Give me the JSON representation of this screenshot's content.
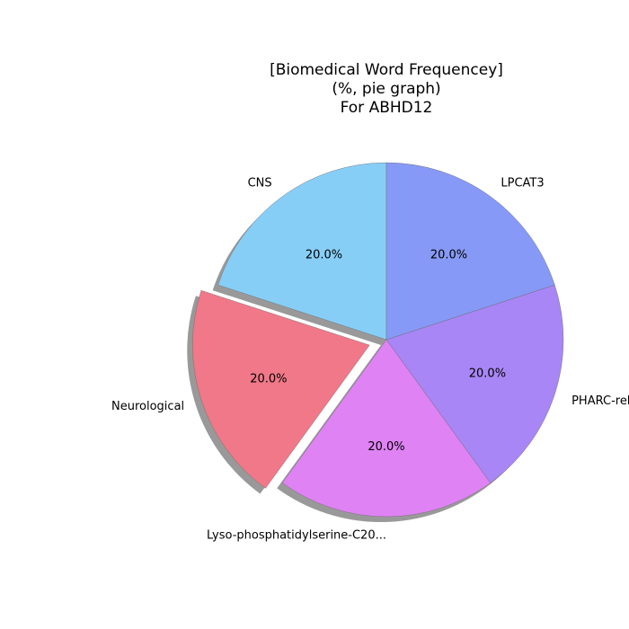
{
  "chart_data": {
    "type": "pie",
    "title_lines": [
      "[Biomedical Word Frequencey]",
      "(%, pie graph)",
      "For ABHD12"
    ],
    "slices": [
      {
        "label": "CNS",
        "value": 20.0,
        "pct_label": "20.0%",
        "color": "#87cef7",
        "explode": false
      },
      {
        "label": "Neurological",
        "value": 20.0,
        "pct_label": "20.0%",
        "color": "#f07888",
        "explode": true
      },
      {
        "label": "Lyso-phosphatidylserine-C20...",
        "value": 20.0,
        "pct_label": "20.0%",
        "color": "#df82f4",
        "explode": false
      },
      {
        "label": "PHARC-related...",
        "value": 20.0,
        "pct_label": "20.0%",
        "color": "#a886f5",
        "explode": false
      },
      {
        "label": "LPCAT3",
        "value": 20.0,
        "pct_label": "20.0%",
        "color": "#8799f6",
        "explode": false
      }
    ],
    "start_angle_deg": 90,
    "direction": "counterclockwise",
    "shadow": true,
    "legend": "none"
  }
}
